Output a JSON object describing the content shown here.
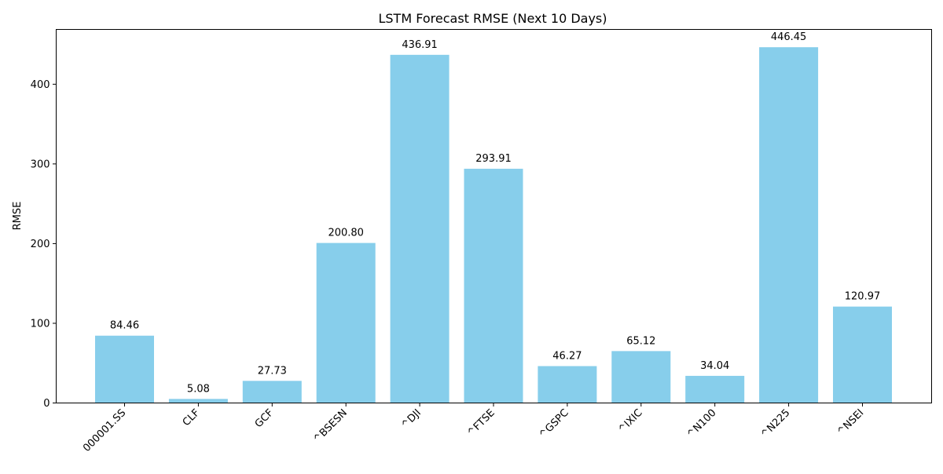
{
  "chart_data": {
    "type": "bar",
    "title": "LSTM Forecast RMSE (Next 10 Days)",
    "xlabel": "",
    "ylabel": "RMSE",
    "categories": [
      "000001.SS",
      "CLF",
      "GCF",
      "^BSESN",
      "^DJI",
      "^FTSE",
      "^GSPC",
      "^IXIC",
      "^N100",
      "^N225",
      "^NSEI"
    ],
    "values": [
      84.46,
      5.08,
      27.73,
      200.8,
      436.91,
      293.91,
      46.27,
      65.12,
      34.04,
      446.45,
      120.97
    ],
    "value_labels": [
      "84.46",
      "5.08",
      "27.73",
      "200.80",
      "436.91",
      "293.91",
      "46.27",
      "65.12",
      "34.04",
      "446.45",
      "120.97"
    ],
    "ylim": [
      0,
      468.77
    ],
    "yticks": [
      0,
      100,
      200,
      300,
      400
    ],
    "bar_color": "#87ceeb",
    "grid": false,
    "legend": "none",
    "xtick_rotation_deg": 45
  }
}
